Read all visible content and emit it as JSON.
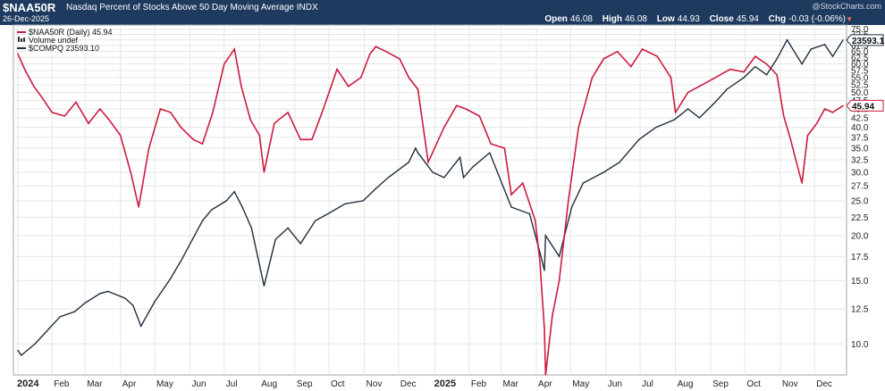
{
  "header": {
    "symbol": "$NAA50R",
    "description": "Nasdaq Percent of Stocks Above 50 Day Moving Average INDX",
    "date": "26-Dec-2025",
    "watermark": "@StockCharts.com",
    "open_label": "Open",
    "open": "46.08",
    "high_label": "High",
    "high": "46.08",
    "low_label": "Low",
    "low": "44.93",
    "close_label": "Close",
    "close": "45.94",
    "chg_label": "Chg",
    "chg": "-0.03 (-0.06%)",
    "chg_icon": "down-triangle-icon"
  },
  "legend": {
    "naa50r": "$NAA50R (Daily) 45.94",
    "volume": "Volume undef",
    "compq": "$COMPQ 23593.10"
  },
  "colors": {
    "header_bg": "#1e3a5f",
    "naa50r": "#cc1a3e",
    "compq": "#1f2e3d",
    "grid": "#e6e6e6"
  },
  "chart_data": {
    "type": "line",
    "x_ticks": [
      "2024",
      "Feb",
      "Mar",
      "Apr",
      "May",
      "Jun",
      "Jul",
      "Aug",
      "Sep",
      "Oct",
      "Nov",
      "Dec",
      "2025",
      "Feb",
      "Mar",
      "Apr",
      "May",
      "Jun",
      "Jul",
      "Aug",
      "Sep",
      "Oct",
      "Nov",
      "Dec"
    ],
    "y_ticks": [
      "75.0",
      "72.5",
      "70.0",
      "67.5",
      "65.0",
      "62.5",
      "60.0",
      "57.5",
      "55.0",
      "52.5",
      "50.0",
      "47.5",
      "45.0",
      "42.5",
      "40.0",
      "37.5",
      "35.0",
      "32.5",
      "30.0",
      "27.5",
      "25.0",
      "22.5",
      "20.0",
      "17.5",
      "15.0",
      "12.5",
      "10.0"
    ],
    "y_scale": "log",
    "ylim": [
      8.2,
      77
    ],
    "last_value_labels": {
      "naa50r": "45.94",
      "compq": "23593.1"
    },
    "series": [
      {
        "name": "$NAA50R (Daily)",
        "x": [
          "2024-01-02",
          "2024-01-08",
          "2024-01-16",
          "2024-01-24",
          "2024-02-01",
          "2024-02-12",
          "2024-02-22",
          "2024-03-04",
          "2024-03-14",
          "2024-03-22",
          "2024-04-01",
          "2024-04-10",
          "2024-04-17",
          "2024-04-26",
          "2024-05-06",
          "2024-05-15",
          "2024-05-24",
          "2024-06-04",
          "2024-06-12",
          "2024-06-21",
          "2024-07-01",
          "2024-07-10",
          "2024-07-16",
          "2024-07-24",
          "2024-08-01",
          "2024-08-05",
          "2024-08-14",
          "2024-08-26",
          "2024-09-06",
          "2024-09-16",
          "2024-09-26",
          "2024-10-08",
          "2024-10-18",
          "2024-10-29",
          "2024-11-06",
          "2024-11-11",
          "2024-11-20",
          "2024-12-02",
          "2024-12-10",
          "2024-12-18",
          "2024-12-27",
          "2025-01-10",
          "2025-01-21",
          "2025-01-29",
          "2025-02-10",
          "2025-02-20",
          "2025-03-04",
          "2025-03-10",
          "2025-03-20",
          "2025-03-31",
          "2025-04-04",
          "2025-04-08",
          "2025-04-09",
          "2025-04-15",
          "2025-04-21",
          "2025-04-29",
          "2025-05-08",
          "2025-05-20",
          "2025-05-30",
          "2025-06-11",
          "2025-06-23",
          "2025-07-03",
          "2025-07-16",
          "2025-07-28",
          "2025-08-01",
          "2025-08-12",
          "2025-08-22",
          "2025-09-05",
          "2025-09-18",
          "2025-09-30",
          "2025-10-10",
          "2025-10-20",
          "2025-10-29",
          "2025-11-04",
          "2025-11-10",
          "2025-11-14",
          "2025-11-20",
          "2025-11-25",
          "2025-12-03",
          "2025-12-10",
          "2025-12-17",
          "2025-12-26"
        ],
        "y": [
          64,
          58,
          52,
          48,
          44,
          43,
          47,
          41,
          45,
          42,
          38,
          30,
          24,
          35,
          45,
          44,
          40,
          37,
          36,
          44,
          60,
          66,
          52,
          42,
          38,
          30,
          41,
          44,
          37,
          37,
          45,
          58,
          52,
          55,
          64,
          67,
          65,
          62,
          55,
          51,
          32,
          40,
          46,
          45,
          43,
          36,
          35,
          26,
          28,
          22,
          17,
          11,
          8.2,
          12,
          15,
          25,
          40,
          55,
          62,
          65,
          59,
          66,
          63,
          55,
          44,
          50,
          52,
          55,
          58,
          57,
          63,
          60,
          56,
          43,
          37,
          33,
          28,
          38,
          41,
          45,
          44,
          45.94
        ]
      },
      {
        "name": "$COMPQ",
        "x": [
          "2024-01-02",
          "2024-01-05",
          "2024-01-17",
          "2024-01-29",
          "2024-02-08",
          "2024-02-21",
          "2024-03-01",
          "2024-03-14",
          "2024-03-21",
          "2024-04-05",
          "2024-04-12",
          "2024-04-19",
          "2024-05-01",
          "2024-05-15",
          "2024-05-24",
          "2024-06-05",
          "2024-06-12",
          "2024-06-20",
          "2024-07-03",
          "2024-07-10",
          "2024-07-17",
          "2024-07-25",
          "2024-08-05",
          "2024-08-15",
          "2024-08-26",
          "2024-09-06",
          "2024-09-19",
          "2024-09-30",
          "2024-10-15",
          "2024-10-31",
          "2024-11-11",
          "2024-11-22",
          "2024-12-10",
          "2024-12-16",
          "2024-12-18",
          "2024-12-31",
          "2025-01-10",
          "2025-01-24",
          "2025-01-27",
          "2025-02-04",
          "2025-02-19",
          "2025-03-10",
          "2025-03-26",
          "2025-04-04",
          "2025-04-08",
          "2025-04-09",
          "2025-04-21",
          "2025-05-02",
          "2025-05-12",
          "2025-05-30",
          "2025-06-13",
          "2025-06-30",
          "2025-07-15",
          "2025-07-31",
          "2025-08-12",
          "2025-08-22",
          "2025-09-05",
          "2025-09-15",
          "2025-09-30",
          "2025-10-10",
          "2025-10-20",
          "2025-10-29",
          "2025-11-07",
          "2025-11-20",
          "2025-11-28",
          "2025-12-10",
          "2025-12-17",
          "2025-12-26"
        ],
        "y": [
          9.6,
          9.3,
          10.0,
          11.0,
          11.9,
          12.3,
          13.0,
          13.8,
          14.0,
          13.4,
          12.8,
          11.2,
          13.1,
          15.2,
          17.0,
          20.0,
          22.0,
          23.6,
          25.0,
          26.5,
          24.0,
          21.0,
          14.5,
          19.5,
          21.0,
          19.0,
          22.0,
          23.0,
          24.5,
          25.0,
          27.0,
          29.0,
          32.0,
          35.0,
          34.0,
          30.0,
          29.0,
          33.0,
          29.0,
          31.0,
          34.0,
          24.0,
          23.0,
          18.0,
          16.0,
          20.0,
          17.5,
          24.0,
          28.0,
          30.0,
          32.0,
          37.0,
          40.0,
          42.0,
          45.0,
          42.5,
          47.0,
          51.0,
          55.0,
          59.0,
          56.0,
          62.0,
          70.0,
          60.0,
          66.0,
          68.0,
          63.0,
          69.9
        ]
      }
    ]
  }
}
